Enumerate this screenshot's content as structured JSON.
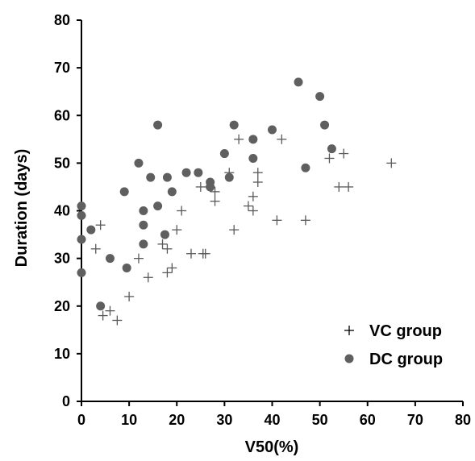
{
  "chart_data": {
    "type": "scatter",
    "title": "",
    "xlabel": "V50(%)",
    "ylabel": "Duration (days)",
    "xlim": [
      0,
      80
    ],
    "ylim": [
      0,
      80
    ],
    "xticks": [
      0,
      10,
      20,
      30,
      40,
      50,
      60,
      70,
      80
    ],
    "yticks": [
      0,
      10,
      20,
      30,
      40,
      50,
      60,
      70,
      80
    ],
    "grid": false,
    "legend_position": "bottom-right",
    "series": [
      {
        "name": "VC group",
        "marker": "plus",
        "color": "#595959",
        "points": [
          [
            3,
            32
          ],
          [
            4,
            37
          ],
          [
            4.5,
            18
          ],
          [
            6,
            19
          ],
          [
            7.5,
            17
          ],
          [
            10,
            22
          ],
          [
            12,
            30
          ],
          [
            14,
            26
          ],
          [
            17,
            33
          ],
          [
            18,
            32
          ],
          [
            18,
            27
          ],
          [
            19,
            28
          ],
          [
            20,
            36
          ],
          [
            21,
            40
          ],
          [
            23,
            31
          ],
          [
            25,
            45
          ],
          [
            25.5,
            31
          ],
          [
            26,
            31
          ],
          [
            27,
            45
          ],
          [
            28,
            42
          ],
          [
            28,
            44
          ],
          [
            31,
            48
          ],
          [
            32,
            36
          ],
          [
            33,
            55
          ],
          [
            35,
            41
          ],
          [
            36,
            40
          ],
          [
            36,
            43
          ],
          [
            37,
            46
          ],
          [
            37,
            48
          ],
          [
            41,
            38
          ],
          [
            42,
            55
          ],
          [
            47,
            38
          ],
          [
            52,
            51
          ],
          [
            54,
            45
          ],
          [
            55,
            52
          ],
          [
            56,
            45
          ],
          [
            65,
            50
          ]
        ]
      },
      {
        "name": "DC group",
        "marker": "circle",
        "color": "#5f5f5f",
        "points": [
          [
            0,
            41
          ],
          [
            0,
            39
          ],
          [
            0,
            34
          ],
          [
            0,
            27
          ],
          [
            2,
            36
          ],
          [
            4,
            20
          ],
          [
            6,
            30
          ],
          [
            9,
            44
          ],
          [
            9.5,
            28
          ],
          [
            12,
            50
          ],
          [
            13,
            37
          ],
          [
            13,
            40
          ],
          [
            13,
            33
          ],
          [
            14.5,
            47
          ],
          [
            16,
            58
          ],
          [
            16,
            41
          ],
          [
            17.5,
            35
          ],
          [
            18,
            47
          ],
          [
            19,
            44
          ],
          [
            22,
            48
          ],
          [
            24.5,
            48
          ],
          [
            27,
            46
          ],
          [
            27,
            45
          ],
          [
            30,
            52
          ],
          [
            31,
            47
          ],
          [
            32,
            58
          ],
          [
            36,
            55
          ],
          [
            36,
            51
          ],
          [
            40,
            57
          ],
          [
            45.5,
            67
          ],
          [
            47,
            49
          ],
          [
            50,
            64
          ],
          [
            51,
            58
          ],
          [
            52.5,
            53
          ]
        ]
      }
    ]
  }
}
